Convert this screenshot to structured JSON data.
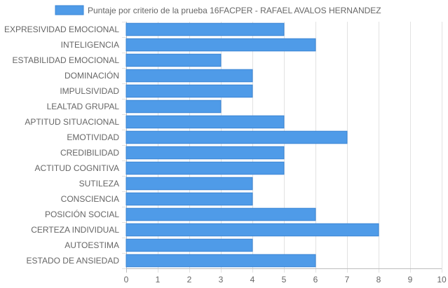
{
  "chart_data": {
    "type": "bar",
    "orientation": "horizontal",
    "categories": [
      "EXPRESIVIDAD EMOCIONAL",
      "INTELIGENCIA",
      "ESTABILIDAD EMOCIONAL",
      "DOMINACIÓN",
      "IMPULSIVIDAD",
      "LEALTAD GRUPAL",
      "APTITUD SITUACIONAL",
      "EMOTIVIDAD",
      "CREDIBILIDAD",
      "ACTITUD COGNITIVA",
      "SUTILEZA",
      "CONSCIENCIA",
      "POSICIÓN SOCIAL",
      "CERTEZA INDIVIDUAL",
      "AUTOESTIMA",
      "ESTADO DE ANSIEDAD"
    ],
    "series": [
      {
        "name": "Puntaje por criterio de la prueba 16FACPER - RAFAEL AVALOS HERNANDEZ",
        "values": [
          5,
          6,
          3,
          4,
          4,
          3,
          5,
          7,
          5,
          5,
          4,
          4,
          6,
          8,
          4,
          6
        ],
        "color": "#4f9be8",
        "border_color": "#3a84d4"
      }
    ],
    "xlim": [
      0,
      10
    ],
    "x_ticks": [
      "0",
      "1",
      "2",
      "3",
      "4",
      "5",
      "6",
      "7",
      "8",
      "9",
      "10"
    ],
    "grid": true,
    "grid_color": "#e2e2e2",
    "legend_position": "top"
  }
}
